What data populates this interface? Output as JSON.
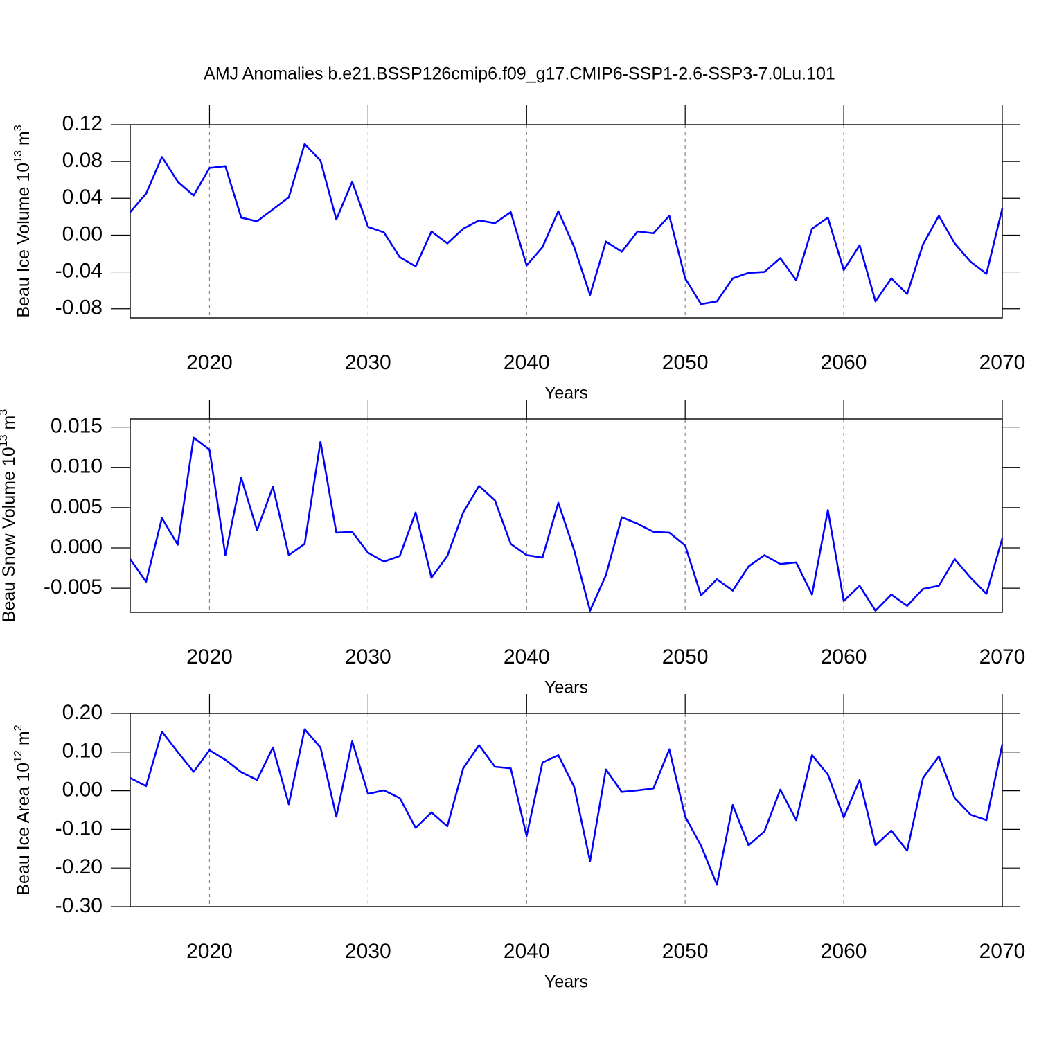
{
  "chart_data": [
    {
      "type": "line",
      "title": "AMJ Anomalies b.e21.BSSP126cmip6.f09_g17.CMIP6-SSP1-2.6-SSP3-7.0Lu.101",
      "xlabel": "Years",
      "ylabel": [
        "Beau Ice Volume 10",
        "13",
        " m",
        "3"
      ],
      "color": "#0000ff",
      "grid": "x",
      "xlim": [
        2015,
        2070
      ],
      "xticks": [
        2020,
        2030,
        2040,
        2050,
        2060,
        2070
      ],
      "ylim": [
        -0.09,
        0.12
      ],
      "yticks": [
        0.12,
        0.08,
        0.04,
        {
          "value": 0,
          "label": "0.00"
        },
        -0.04,
        -0.08
      ],
      "x": [
        2015,
        2016,
        2017,
        2018,
        2019,
        2020,
        2021,
        2022,
        2023,
        2024,
        2025,
        2026,
        2027,
        2028,
        2029,
        2030,
        2031,
        2032,
        2033,
        2034,
        2035,
        2036,
        2037,
        2038,
        2039,
        2040,
        2041,
        2042,
        2043,
        2044,
        2045,
        2046,
        2047,
        2048,
        2049,
        2050,
        2051,
        2052,
        2053,
        2054,
        2055,
        2056,
        2057,
        2058,
        2059,
        2060,
        2061,
        2062,
        2063,
        2064,
        2065,
        2066,
        2067,
        2068,
        2069,
        2070
      ],
      "values": [
        0.025,
        0.045,
        0.085,
        0.058,
        0.043,
        0.073,
        0.075,
        0.019,
        0.015,
        0.028,
        0.041,
        0.099,
        0.081,
        0.017,
        0.058,
        0.009,
        0.003,
        -0.024,
        -0.034,
        0.004,
        -0.009,
        0.007,
        0.016,
        0.013,
        0.025,
        -0.033,
        -0.013,
        0.026,
        -0.013,
        -0.065,
        -0.007,
        -0.018,
        0.004,
        0.002,
        0.021,
        -0.047,
        -0.075,
        -0.072,
        -0.047,
        -0.041,
        -0.04,
        -0.025,
        -0.049,
        0.007,
        0.019,
        -0.038,
        -0.011,
        -0.072,
        -0.047,
        -0.064,
        -0.01,
        0.021,
        -0.009,
        -0.029,
        -0.042,
        0.029
      ]
    },
    {
      "type": "line",
      "xlabel": "Years",
      "ylabel": [
        "Beau Snow Volume 10",
        "13",
        " m",
        "3"
      ],
      "color": "#0000ff",
      "grid": "x",
      "xlim": [
        2015,
        2070
      ],
      "xticks": [
        2020,
        2030,
        2040,
        2050,
        2060,
        2070
      ],
      "ylim": [
        -0.008,
        0.016
      ],
      "yticks": [
        0.015,
        {
          "value": 0.01,
          "label": "0.010"
        },
        0.005,
        {
          "value": 0,
          "label": "0.000"
        },
        -0.005
      ],
      "x": [
        2015,
        2016,
        2017,
        2018,
        2019,
        2020,
        2021,
        2022,
        2023,
        2024,
        2025,
        2026,
        2027,
        2028,
        2029,
        2030,
        2031,
        2032,
        2033,
        2034,
        2035,
        2036,
        2037,
        2038,
        2039,
        2040,
        2041,
        2042,
        2043,
        2044,
        2045,
        2046,
        2047,
        2048,
        2049,
        2050,
        2051,
        2052,
        2053,
        2054,
        2055,
        2056,
        2057,
        2058,
        2059,
        2060,
        2061,
        2062,
        2063,
        2064,
        2065,
        2066,
        2067,
        2068,
        2069,
        2070
      ],
      "values": [
        -0.0014,
        -0.0042,
        0.0037,
        0.0004,
        0.0137,
        0.0122,
        -0.0009,
        0.0087,
        0.0022,
        0.0076,
        -0.0009,
        0.0005,
        0.0132,
        0.0019,
        0.002,
        -0.0006,
        -0.0017,
        -0.001,
        0.0044,
        -0.0037,
        -0.001,
        0.0044,
        0.0077,
        0.0059,
        0.0005,
        -0.0009,
        -0.0012,
        0.0056,
        -0.0003,
        -0.0078,
        -0.0034,
        0.0038,
        0.003,
        0.002,
        0.0019,
        0.0003,
        -0.0059,
        -0.0039,
        -0.0053,
        -0.0023,
        -0.0009,
        -0.002,
        -0.0018,
        -0.0058,
        0.0047,
        -0.0066,
        -0.0047,
        -0.0078,
        -0.0058,
        -0.0072,
        -0.0051,
        -0.0047,
        -0.0014,
        -0.0037,
        -0.0057,
        0.0012
      ]
    },
    {
      "type": "line",
      "xlabel": "Years",
      "ylabel": [
        "Beau Ice Area 10",
        "12",
        " m",
        "2"
      ],
      "color": "#0000ff",
      "grid": "x",
      "xlim": [
        2015,
        2070
      ],
      "xticks": [
        2020,
        2030,
        2040,
        2050,
        2060,
        2070
      ],
      "ylim": [
        -0.3,
        0.2
      ],
      "yticks": [
        {
          "value": 0.2,
          "label": "0.20"
        },
        {
          "value": 0.1,
          "label": "0.10"
        },
        {
          "value": 0,
          "label": "0.00"
        },
        {
          "value": -0.1,
          "label": "-0.10"
        },
        {
          "value": -0.2,
          "label": "-0.20"
        },
        {
          "value": -0.3,
          "label": "-0.30"
        }
      ],
      "x": [
        2015,
        2016,
        2017,
        2018,
        2019,
        2020,
        2021,
        2022,
        2023,
        2024,
        2025,
        2026,
        2027,
        2028,
        2029,
        2030,
        2031,
        2032,
        2033,
        2034,
        2035,
        2036,
        2037,
        2038,
        2039,
        2040,
        2041,
        2042,
        2043,
        2044,
        2045,
        2046,
        2047,
        2048,
        2049,
        2050,
        2051,
        2052,
        2053,
        2054,
        2055,
        2056,
        2057,
        2058,
        2059,
        2060,
        2061,
        2062,
        2063,
        2064,
        2065,
        2066,
        2067,
        2068,
        2069,
        2070
      ],
      "values": [
        0.033,
        0.012,
        0.153,
        0.1,
        0.049,
        0.105,
        0.08,
        0.048,
        0.028,
        0.112,
        -0.035,
        0.159,
        0.112,
        -0.067,
        0.128,
        -0.008,
        0.001,
        -0.019,
        -0.096,
        -0.056,
        -0.092,
        0.058,
        0.118,
        0.062,
        0.058,
        -0.117,
        0.073,
        0.092,
        0.01,
        -0.182,
        0.055,
        -0.003,
        0.001,
        0.006,
        0.107,
        -0.067,
        -0.142,
        -0.243,
        -0.037,
        -0.141,
        -0.105,
        0.003,
        -0.076,
        0.092,
        0.042,
        -0.069,
        0.028,
        -0.141,
        -0.103,
        -0.155,
        0.033,
        0.089,
        -0.019,
        -0.062,
        -0.076,
        0.12
      ]
    }
  ]
}
